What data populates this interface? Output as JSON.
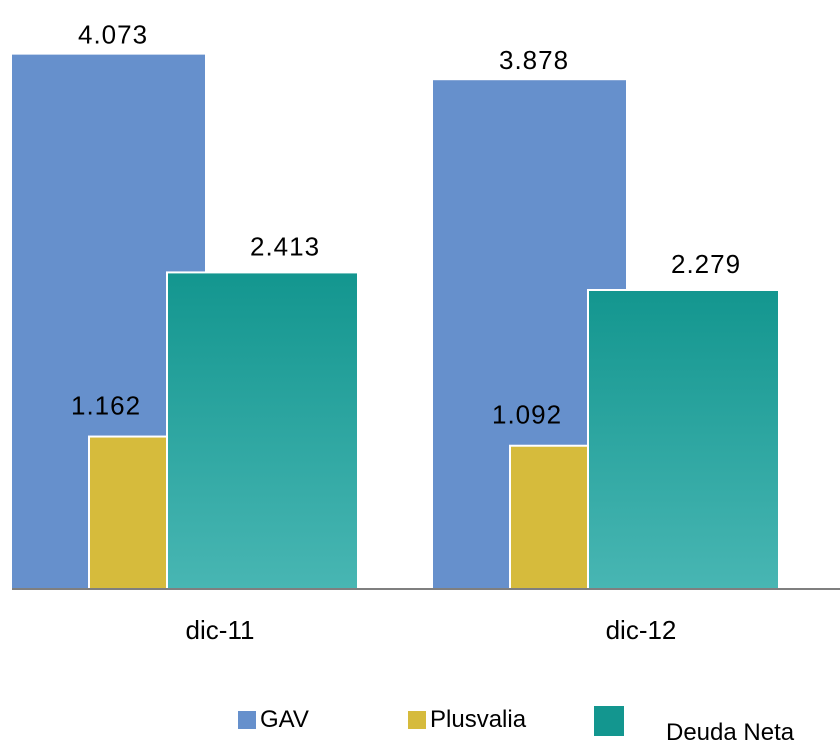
{
  "chart_data": {
    "type": "bar",
    "categories": [
      "dic-11",
      "dic-12"
    ],
    "series": [
      {
        "name": "GAV",
        "values": [
          4.073,
          3.878
        ],
        "labels": [
          "4.073",
          "3.878"
        ],
        "color": "#6690cc"
      },
      {
        "name": "Plusvalia",
        "values": [
          1.162,
          1.092
        ],
        "labels": [
          "1.162",
          "1.092"
        ],
        "color": "#d6bb3c"
      },
      {
        "name": "Deuda Neta",
        "values": [
          2.413,
          2.279
        ],
        "labels": [
          "2.413",
          "2.279"
        ],
        "color": "#13968f",
        "color_light": "#48b6b3"
      }
    ],
    "title": "",
    "xlabel": "",
    "ylabel": "",
    "ylim": [
      0,
      4.2
    ],
    "grid": false,
    "legend_position": "bottom"
  }
}
